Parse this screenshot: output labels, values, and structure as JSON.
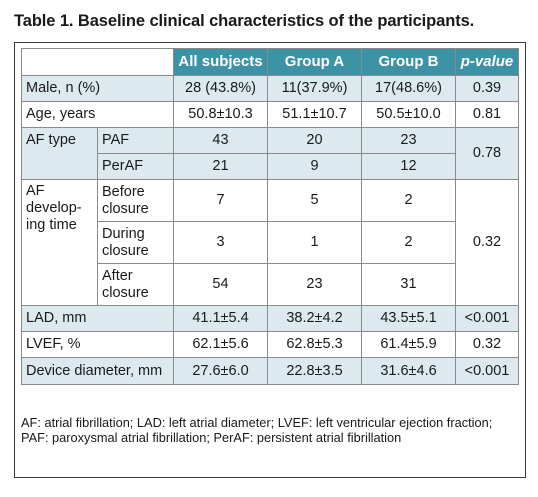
{
  "title": "Table 1. Baseline clinical characteristics of the participants.",
  "columns": {
    "all": "All subjects",
    "groupA": "Group A",
    "groupB": "Group B",
    "pvalue": "p-value"
  },
  "rows": {
    "male": {
      "label": "Male, n (%)",
      "all": "28 (43.8%)",
      "a": "11(37.9%)",
      "b": "17(48.6%)",
      "p": "0.39"
    },
    "age": {
      "label": "Age, years",
      "all": "50.8±10.3",
      "a": "51.1±10.7",
      "b": "50.5±10.0",
      "p": "0.81"
    },
    "af_type": {
      "label": "AF type",
      "p": "0.78",
      "sub": [
        {
          "label": "PAF",
          "all": "43",
          "a": "20",
          "b": "23"
        },
        {
          "label": "PerAF",
          "all": "21",
          "a": "9",
          "b": "12"
        }
      ]
    },
    "af_time": {
      "label": "AF develop-ing time",
      "label_lines": [
        "AF",
        "develop-",
        "ing time"
      ],
      "p": "0.32",
      "sub": [
        {
          "label_lines": [
            "Before",
            "closure"
          ],
          "all": "7",
          "a": "5",
          "b": "2"
        },
        {
          "label_lines": [
            "During",
            "closure"
          ],
          "all": "3",
          "a": "1",
          "b": "2"
        },
        {
          "label_lines": [
            "After",
            "closure"
          ],
          "all": "54",
          "a": "23",
          "b": "31"
        }
      ]
    },
    "lad": {
      "label": "LAD, mm",
      "all": "41.1±5.4",
      "a": "38.2±4.2",
      "b": "43.5±5.1",
      "p": "<0.001"
    },
    "lvef": {
      "label": "LVEF, %",
      "all": "62.1±5.6",
      "a": "62.8±5.3",
      "b": "61.4±5.9",
      "p": "0.32"
    },
    "device": {
      "label": "Device diameter, mm",
      "all": "27.6±6.0",
      "a": "22.8±3.5",
      "b": "31.6±4.6",
      "p": "<0.001"
    }
  },
  "footnote": "AF: atrial fibrillation; LAD: left atrial diameter; LVEF: left ventricular ejection fraction; PAF: paroxysmal atrial fibrillation; PerAF: persistent atrial fibrillation"
}
